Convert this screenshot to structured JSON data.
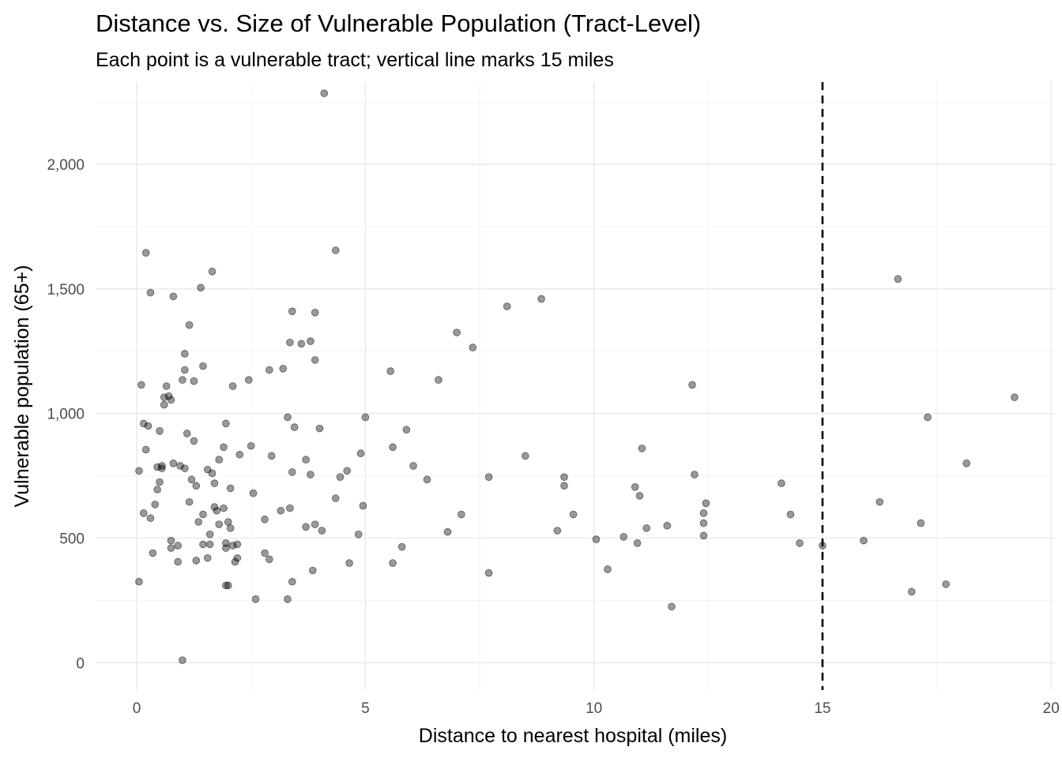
{
  "chart_data": {
    "type": "scatter",
    "title": "Distance vs. Size of Vulnerable Population (Tract-Level)",
    "subtitle": "Each point is a vulnerable tract; vertical line marks 15 miles",
    "xlabel": "Distance to nearest hospital (miles)",
    "ylabel": "Vulnerable population (65+)",
    "xlim": [
      -0.9,
      20.1
    ],
    "ylim": [
      -110,
      2330
    ],
    "x_ticks": [
      0,
      5,
      10,
      15,
      20
    ],
    "x_tick_labels": [
      "0",
      "5",
      "10",
      "15",
      "20"
    ],
    "y_ticks": [
      0,
      500,
      1000,
      1500,
      2000
    ],
    "y_tick_labels": [
      "0",
      "500",
      "1,000",
      "1,500",
      "2,000"
    ],
    "grid": true,
    "reference_line": {
      "orientation": "vertical",
      "x": 15,
      "style": "dashed",
      "color": "#000000"
    },
    "point_color": "#000000",
    "points": [
      {
        "x": 0.05,
        "y": 325
      },
      {
        "x": 0.05,
        "y": 770
      },
      {
        "x": 0.1,
        "y": 1115
      },
      {
        "x": 0.15,
        "y": 600
      },
      {
        "x": 0.15,
        "y": 960
      },
      {
        "x": 0.2,
        "y": 855
      },
      {
        "x": 0.2,
        "y": 1645
      },
      {
        "x": 0.25,
        "y": 950
      },
      {
        "x": 0.3,
        "y": 580
      },
      {
        "x": 0.3,
        "y": 1485
      },
      {
        "x": 0.35,
        "y": 440
      },
      {
        "x": 0.4,
        "y": 635
      },
      {
        "x": 0.45,
        "y": 785
      },
      {
        "x": 0.45,
        "y": 695
      },
      {
        "x": 0.5,
        "y": 725
      },
      {
        "x": 0.5,
        "y": 930
      },
      {
        "x": 0.55,
        "y": 790
      },
      {
        "x": 0.55,
        "y": 780
      },
      {
        "x": 0.6,
        "y": 1065
      },
      {
        "x": 0.6,
        "y": 1035
      },
      {
        "x": 0.65,
        "y": 1110
      },
      {
        "x": 0.7,
        "y": 1070
      },
      {
        "x": 0.75,
        "y": 1055
      },
      {
        "x": 0.75,
        "y": 490
      },
      {
        "x": 0.75,
        "y": 460
      },
      {
        "x": 0.8,
        "y": 800
      },
      {
        "x": 0.8,
        "y": 1470
      },
      {
        "x": 0.9,
        "y": 470
      },
      {
        "x": 0.9,
        "y": 405
      },
      {
        "x": 0.95,
        "y": 790
      },
      {
        "x": 1.0,
        "y": 1135
      },
      {
        "x": 1.0,
        "y": 10
      },
      {
        "x": 1.05,
        "y": 780
      },
      {
        "x": 1.05,
        "y": 1240
      },
      {
        "x": 1.05,
        "y": 1175
      },
      {
        "x": 1.1,
        "y": 920
      },
      {
        "x": 1.15,
        "y": 1355
      },
      {
        "x": 1.15,
        "y": 645
      },
      {
        "x": 1.2,
        "y": 735
      },
      {
        "x": 1.25,
        "y": 890
      },
      {
        "x": 1.25,
        "y": 1130
      },
      {
        "x": 1.3,
        "y": 710
      },
      {
        "x": 1.3,
        "y": 410
      },
      {
        "x": 1.35,
        "y": 565
      },
      {
        "x": 1.4,
        "y": 1505
      },
      {
        "x": 1.45,
        "y": 1190
      },
      {
        "x": 1.45,
        "y": 475
      },
      {
        "x": 1.45,
        "y": 595
      },
      {
        "x": 1.55,
        "y": 420
      },
      {
        "x": 1.55,
        "y": 775
      },
      {
        "x": 1.6,
        "y": 515
      },
      {
        "x": 1.6,
        "y": 475
      },
      {
        "x": 1.65,
        "y": 1570
      },
      {
        "x": 1.65,
        "y": 760
      },
      {
        "x": 1.7,
        "y": 625
      },
      {
        "x": 1.7,
        "y": 720
      },
      {
        "x": 1.75,
        "y": 610
      },
      {
        "x": 1.8,
        "y": 815
      },
      {
        "x": 1.8,
        "y": 555
      },
      {
        "x": 1.9,
        "y": 865
      },
      {
        "x": 1.9,
        "y": 620
      },
      {
        "x": 1.95,
        "y": 960
      },
      {
        "x": 1.95,
        "y": 480
      },
      {
        "x": 1.95,
        "y": 460
      },
      {
        "x": 1.95,
        "y": 310
      },
      {
        "x": 2.0,
        "y": 310
      },
      {
        "x": 2.0,
        "y": 565
      },
      {
        "x": 2.05,
        "y": 700
      },
      {
        "x": 2.05,
        "y": 540
      },
      {
        "x": 2.1,
        "y": 1110
      },
      {
        "x": 2.1,
        "y": 470
      },
      {
        "x": 2.15,
        "y": 405
      },
      {
        "x": 2.2,
        "y": 420
      },
      {
        "x": 2.2,
        "y": 475
      },
      {
        "x": 2.25,
        "y": 835
      },
      {
        "x": 2.45,
        "y": 1135
      },
      {
        "x": 2.5,
        "y": 870
      },
      {
        "x": 2.55,
        "y": 680
      },
      {
        "x": 2.6,
        "y": 255
      },
      {
        "x": 2.8,
        "y": 440
      },
      {
        "x": 2.8,
        "y": 575
      },
      {
        "x": 2.9,
        "y": 1175
      },
      {
        "x": 2.9,
        "y": 415
      },
      {
        "x": 2.95,
        "y": 830
      },
      {
        "x": 3.15,
        "y": 610
      },
      {
        "x": 3.2,
        "y": 1180
      },
      {
        "x": 3.3,
        "y": 255
      },
      {
        "x": 3.3,
        "y": 985
      },
      {
        "x": 3.35,
        "y": 1285
      },
      {
        "x": 3.35,
        "y": 620
      },
      {
        "x": 3.4,
        "y": 325
      },
      {
        "x": 3.4,
        "y": 765
      },
      {
        "x": 3.4,
        "y": 1410
      },
      {
        "x": 3.45,
        "y": 945
      },
      {
        "x": 3.6,
        "y": 1280
      },
      {
        "x": 3.7,
        "y": 815
      },
      {
        "x": 3.7,
        "y": 545
      },
      {
        "x": 3.8,
        "y": 1290
      },
      {
        "x": 3.8,
        "y": 755
      },
      {
        "x": 3.85,
        "y": 370
      },
      {
        "x": 3.9,
        "y": 555
      },
      {
        "x": 3.9,
        "y": 1215
      },
      {
        "x": 3.9,
        "y": 1405
      },
      {
        "x": 4.0,
        "y": 940
      },
      {
        "x": 4.05,
        "y": 530
      },
      {
        "x": 4.1,
        "y": 2285
      },
      {
        "x": 4.35,
        "y": 1655
      },
      {
        "x": 4.35,
        "y": 660
      },
      {
        "x": 4.45,
        "y": 745
      },
      {
        "x": 4.6,
        "y": 770
      },
      {
        "x": 4.65,
        "y": 400
      },
      {
        "x": 4.85,
        "y": 515
      },
      {
        "x": 4.9,
        "y": 840
      },
      {
        "x": 4.95,
        "y": 630
      },
      {
        "x": 5.0,
        "y": 985
      },
      {
        "x": 5.55,
        "y": 1170
      },
      {
        "x": 5.6,
        "y": 865
      },
      {
        "x": 5.6,
        "y": 400
      },
      {
        "x": 5.8,
        "y": 465
      },
      {
        "x": 5.9,
        "y": 935
      },
      {
        "x": 6.05,
        "y": 790
      },
      {
        "x": 6.35,
        "y": 735
      },
      {
        "x": 6.6,
        "y": 1135
      },
      {
        "x": 6.8,
        "y": 525
      },
      {
        "x": 7.0,
        "y": 1325
      },
      {
        "x": 7.1,
        "y": 595
      },
      {
        "x": 7.35,
        "y": 1265
      },
      {
        "x": 7.7,
        "y": 745
      },
      {
        "x": 7.7,
        "y": 360
      },
      {
        "x": 8.1,
        "y": 1430
      },
      {
        "x": 8.5,
        "y": 830
      },
      {
        "x": 8.85,
        "y": 1460
      },
      {
        "x": 9.2,
        "y": 530
      },
      {
        "x": 9.35,
        "y": 745
      },
      {
        "x": 9.35,
        "y": 710
      },
      {
        "x": 9.55,
        "y": 595
      },
      {
        "x": 10.05,
        "y": 495
      },
      {
        "x": 10.3,
        "y": 375
      },
      {
        "x": 10.65,
        "y": 505
      },
      {
        "x": 10.9,
        "y": 705
      },
      {
        "x": 10.95,
        "y": 480
      },
      {
        "x": 11.0,
        "y": 670
      },
      {
        "x": 11.05,
        "y": 860
      },
      {
        "x": 11.15,
        "y": 540
      },
      {
        "x": 11.6,
        "y": 550
      },
      {
        "x": 11.7,
        "y": 225
      },
      {
        "x": 12.15,
        "y": 1115
      },
      {
        "x": 12.2,
        "y": 755
      },
      {
        "x": 12.4,
        "y": 510
      },
      {
        "x": 12.4,
        "y": 560
      },
      {
        "x": 12.4,
        "y": 600
      },
      {
        "x": 12.45,
        "y": 640
      },
      {
        "x": 14.1,
        "y": 720
      },
      {
        "x": 14.3,
        "y": 595
      },
      {
        "x": 14.5,
        "y": 480
      },
      {
        "x": 15.0,
        "y": 470
      },
      {
        "x": 15.9,
        "y": 490
      },
      {
        "x": 16.25,
        "y": 645
      },
      {
        "x": 16.65,
        "y": 1540
      },
      {
        "x": 16.95,
        "y": 285
      },
      {
        "x": 17.15,
        "y": 560
      },
      {
        "x": 17.3,
        "y": 985
      },
      {
        "x": 17.7,
        "y": 315
      },
      {
        "x": 18.15,
        "y": 800
      },
      {
        "x": 19.2,
        "y": 1065
      }
    ]
  }
}
